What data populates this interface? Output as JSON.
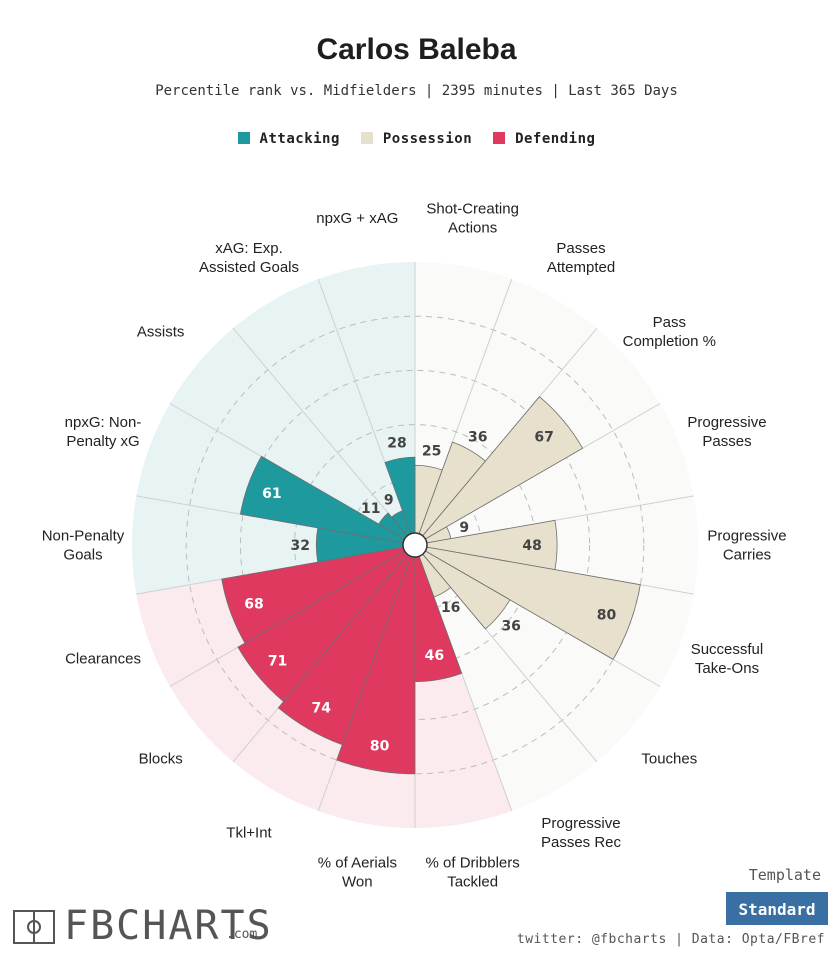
{
  "header": {
    "title": "Carlos Baleba",
    "subtitle": "Percentile rank vs. Midfielders | 2395 minutes | Last 365 Days"
  },
  "legend": [
    {
      "label": "Attacking",
      "color": "#1e9a9f"
    },
    {
      "label": "Possession",
      "color": "#e6e0cc"
    },
    {
      "label": "Defending",
      "color": "#e0395f"
    }
  ],
  "chart_data": {
    "type": "polar-bar",
    "title": "Carlos Baleba",
    "range": [
      0,
      100
    ],
    "grid": true,
    "legend_position": "top",
    "groups": [
      {
        "name": "Attacking",
        "color": "#1e9a9f",
        "background": "#e8f4f4"
      },
      {
        "name": "Possession",
        "color": "#e6e0cc",
        "background": "#fafaf8"
      },
      {
        "name": "Defending",
        "color": "#e0395f",
        "background": "#fbeaee"
      }
    ],
    "categories": [
      {
        "label": "Shot-Creating\nActions",
        "value": 25,
        "group": "Possession"
      },
      {
        "label": "Passes\nAttempted",
        "value": 36,
        "group": "Possession"
      },
      {
        "label": "Pass\nCompletion %",
        "value": 67,
        "group": "Possession"
      },
      {
        "label": "Progressive\nPasses",
        "value": 9,
        "group": "Possession"
      },
      {
        "label": "Progressive\nCarries",
        "value": 48,
        "group": "Possession"
      },
      {
        "label": "Successful\nTake-Ons",
        "value": 80,
        "group": "Possession"
      },
      {
        "label": "Touches",
        "value": 36,
        "group": "Possession"
      },
      {
        "label": "Progressive\nPasses Rec",
        "value": 16,
        "group": "Possession"
      },
      {
        "label": "% of Dribblers\nTackled",
        "value": 46,
        "group": "Defending"
      },
      {
        "label": "% of Aerials\nWon",
        "value": 80,
        "group": "Defending"
      },
      {
        "label": "Tkl+Int",
        "value": 74,
        "group": "Defending"
      },
      {
        "label": "Blocks",
        "value": 71,
        "group": "Defending"
      },
      {
        "label": "Clearances",
        "value": 68,
        "group": "Defending"
      },
      {
        "label": "Non-Penalty\nGoals",
        "value": 32,
        "group": "Attacking"
      },
      {
        "label": "npxG: Non-\nPenalty xG",
        "value": 61,
        "group": "Attacking"
      },
      {
        "label": "Assists",
        "value": 11,
        "group": "Attacking"
      },
      {
        "label": "xAG: Exp.\nAssisted Goals",
        "value": 9,
        "group": "Attacking"
      },
      {
        "label": "npxG + xAG",
        "value": 28,
        "group": "Attacking"
      }
    ]
  },
  "footer": {
    "brand": "FBCHARTS",
    "brand_suffix": ".com",
    "template_label": "Template",
    "template_button": "Standard",
    "credits": "twitter: @fbcharts | Data: Opta/FBref"
  }
}
